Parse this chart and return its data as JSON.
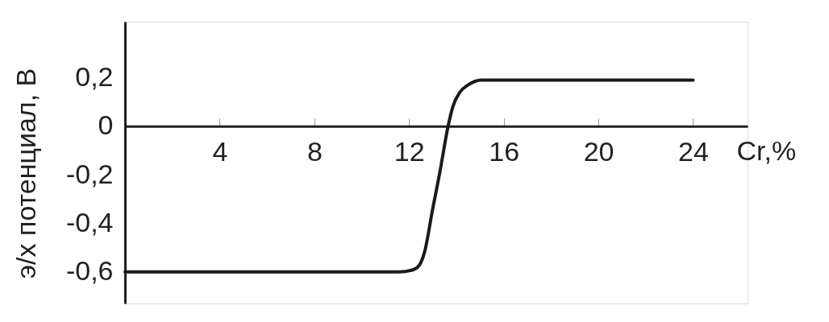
{
  "chart_data": {
    "type": "line",
    "xlabel": "Cr,%",
    "ylabel": "э/х потенциал, В",
    "x": [
      0,
      11.6,
      12.2,
      12.45,
      12.65,
      13.0,
      13.3,
      13.65,
      13.85,
      14.15,
      14.5,
      15.05,
      24
    ],
    "series": [
      {
        "color": "#1a1a1a",
        "values": [
          -0.6,
          -0.6,
          -0.59,
          -0.57,
          -0.52,
          -0.34,
          -0.19,
          0.0,
          0.08,
          0.14,
          0.17,
          0.19,
          0.19
        ]
      }
    ],
    "xlim": [
      0,
      26.3
    ],
    "ylim": [
      -0.73,
      0.43
    ],
    "xticks": [
      4,
      8,
      12,
      16,
      20,
      24
    ],
    "yticks": [
      {
        "value": -0.6,
        "label": "-0,6"
      },
      {
        "value": -0.4,
        "label": "-0,4"
      },
      {
        "value": -0.2,
        "label": "-0,2"
      },
      0,
      {
        "value": 0.2,
        "label": "0,2"
      }
    ],
    "grid": false,
    "marker": "none",
    "line_style": "solid"
  }
}
